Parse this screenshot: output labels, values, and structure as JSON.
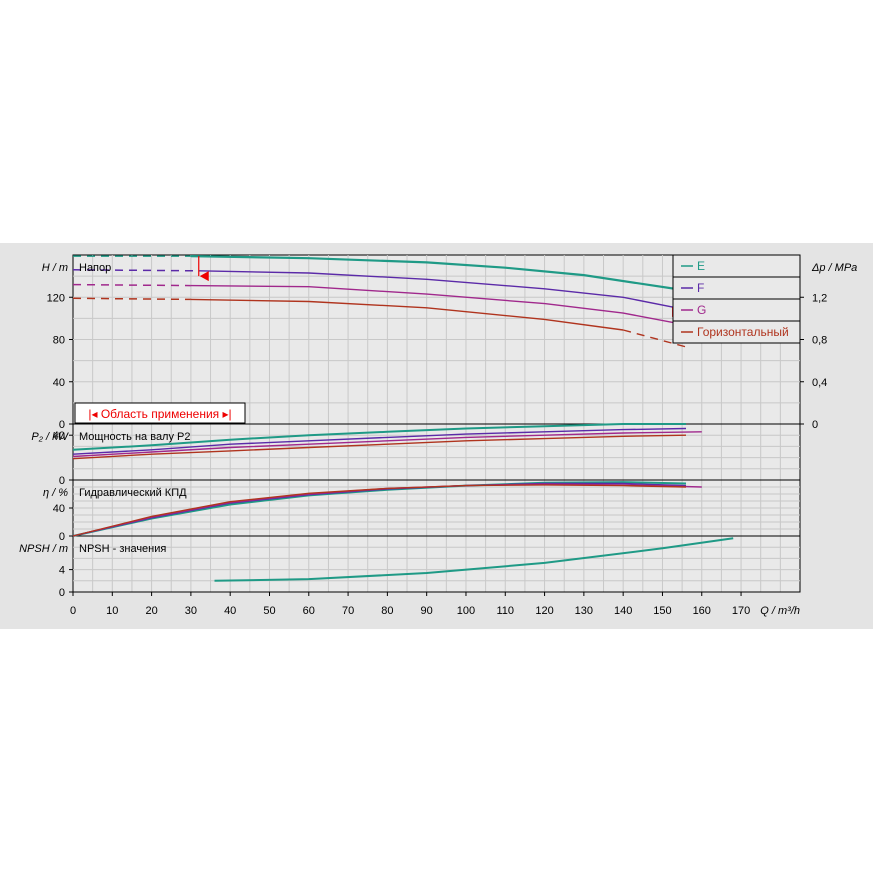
{
  "chart_data": [
    {
      "type": "line",
      "panel": "head",
      "title": "Напор",
      "ylabel": "H / m",
      "y2label": "Δp / MPa",
      "xlabel": "Q / m³/h",
      "xlim": [
        0,
        185
      ],
      "ylim": [
        0,
        160
      ],
      "y2lim": [
        0,
        1.6
      ],
      "xticks": [
        0,
        10,
        20,
        30,
        40,
        50,
        60,
        70,
        80,
        90,
        100,
        110,
        120,
        130,
        140,
        150,
        160,
        170
      ],
      "yticks": [
        0,
        40,
        80,
        120
      ],
      "y2ticks": [
        0,
        0.4,
        0.8,
        1.2
      ],
      "y2ticklabels": [
        "0",
        "0,4",
        "0,8",
        "1,2"
      ],
      "series": [
        {
          "name": "E",
          "color": "#1f9a86",
          "solid": [
            [
              30,
              159
            ],
            [
              60,
              157
            ],
            [
              90,
              153
            ],
            [
              110,
              148
            ],
            [
              130,
              141
            ],
            [
              155,
              127
            ]
          ],
          "dashed": [
            [
              0,
              159
            ],
            [
              30,
              159
            ]
          ]
        },
        {
          "name": "F",
          "color": "#5b2aa8",
          "solid": [
            [
              32,
              145
            ],
            [
              60,
              143
            ],
            [
              90,
              137
            ],
            [
              120,
              128
            ],
            [
              140,
              120
            ],
            [
              155,
              109
            ]
          ],
          "dashed": [
            [
              0,
              146
            ],
            [
              32,
              145
            ]
          ],
          "tail": [
            [
              155,
              109
            ],
            [
              163,
              103
            ]
          ]
        },
        {
          "name": "G",
          "color": "#a0288c",
          "solid": [
            [
              30,
              131
            ],
            [
              60,
              130
            ],
            [
              90,
              123
            ],
            [
              120,
              114
            ],
            [
              140,
              105
            ],
            [
              160,
              91
            ]
          ],
          "dashed": [
            [
              0,
              132
            ],
            [
              30,
              131
            ]
          ],
          "tail": [
            [
              160,
              91
            ],
            [
              168,
              84
            ]
          ]
        },
        {
          "name": "Горизонтальный",
          "color": "#b0341e",
          "solid": [
            [
              30,
              118
            ],
            [
              60,
              116
            ],
            [
              90,
              110
            ],
            [
              120,
              99
            ],
            [
              140,
              89
            ]
          ],
          "dashed": [
            [
              0,
              119
            ],
            [
              30,
              118
            ]
          ],
          "tail": [
            [
              140,
              89
            ],
            [
              156,
              73
            ]
          ]
        }
      ],
      "annotations": {
        "range_label": "Область применения",
        "range_marker_left_x": 32,
        "range_marker_right_x": 155
      }
    },
    {
      "type": "line",
      "panel": "power",
      "title": "Мощность на валу P2",
      "ylabel": "P₂ / kW",
      "ylim": [
        0,
        50
      ],
      "yticks": [
        0,
        40
      ],
      "series": [
        {
          "name": "E",
          "color": "#1f9a86",
          "points": [
            [
              0,
              27
            ],
            [
              20,
              31
            ],
            [
              40,
              36
            ],
            [
              60,
              40
            ],
            [
              80,
              43
            ],
            [
              100,
              46
            ],
            [
              120,
              48
            ],
            [
              140,
              50
            ],
            [
              156,
              50
            ]
          ]
        },
        {
          "name": "F",
          "color": "#5b2aa8",
          "points": [
            [
              0,
              23
            ],
            [
              20,
              27
            ],
            [
              40,
              32
            ],
            [
              60,
              35
            ],
            [
              80,
              38
            ],
            [
              100,
              41
            ],
            [
              120,
              43
            ],
            [
              140,
              45
            ],
            [
              156,
              46
            ]
          ]
        },
        {
          "name": "G",
          "color": "#a0288c",
          "points": [
            [
              0,
              21
            ],
            [
              20,
              25
            ],
            [
              40,
              29
            ],
            [
              60,
              32
            ],
            [
              80,
              35
            ],
            [
              100,
              38
            ],
            [
              120,
              40
            ],
            [
              140,
              42
            ],
            [
              160,
              43
            ]
          ]
        },
        {
          "name": "Горизонтальный",
          "color": "#b0341e",
          "points": [
            [
              0,
              19
            ],
            [
              20,
              23
            ],
            [
              40,
              26
            ],
            [
              60,
              29
            ],
            [
              80,
              32
            ],
            [
              100,
              35
            ],
            [
              120,
              37
            ],
            [
              140,
              39
            ],
            [
              156,
              40
            ]
          ]
        }
      ]
    },
    {
      "type": "line",
      "panel": "efficiency",
      "title": "Гидравлический КПД",
      "ylabel": "η / %",
      "ylim": [
        0,
        80
      ],
      "yticks": [
        0,
        40
      ],
      "series": [
        {
          "name": "E",
          "color": "#1f9a86",
          "points": [
            [
              0,
              0
            ],
            [
              20,
              25
            ],
            [
              40,
              45
            ],
            [
              60,
              58
            ],
            [
              80,
              66
            ],
            [
              100,
              72
            ],
            [
              120,
              76
            ],
            [
              140,
              77
            ],
            [
              156,
              75
            ]
          ]
        },
        {
          "name": "F",
          "color": "#5b2aa8",
          "points": [
            [
              0,
              0
            ],
            [
              20,
              26
            ],
            [
              40,
              47
            ],
            [
              60,
              59
            ],
            [
              80,
              67
            ],
            [
              100,
              72
            ],
            [
              120,
              75
            ],
            [
              140,
              75
            ],
            [
              156,
              72
            ]
          ]
        },
        {
          "name": "G",
          "color": "#a0288c",
          "points": [
            [
              0,
              0
            ],
            [
              20,
              27
            ],
            [
              40,
              48
            ],
            [
              60,
              60
            ],
            [
              80,
              68
            ],
            [
              100,
              72
            ],
            [
              120,
              74
            ],
            [
              140,
              73
            ],
            [
              160,
              70
            ]
          ]
        },
        {
          "name": "Горизонтальный",
          "color": "#b0341e",
          "points": [
            [
              0,
              0
            ],
            [
              20,
              28
            ],
            [
              40,
              49
            ],
            [
              60,
              61
            ],
            [
              80,
              68
            ],
            [
              100,
              72
            ],
            [
              120,
              73
            ],
            [
              140,
              72
            ],
            [
              156,
              70
            ]
          ]
        }
      ]
    },
    {
      "type": "line",
      "panel": "npsh",
      "title": "NPSH - значения",
      "ylabel": "NPSH / m",
      "ylim": [
        0,
        10
      ],
      "yticks": [
        0,
        4
      ],
      "series": [
        {
          "name": "E",
          "color": "#1f9a86",
          "points": [
            [
              36,
              2
            ],
            [
              60,
              2.3
            ],
            [
              90,
              3.4
            ],
            [
              120,
              5.2
            ],
            [
              150,
              7.8
            ],
            [
              168,
              9.6
            ]
          ]
        }
      ]
    }
  ],
  "legend": {
    "items": [
      "E",
      "F",
      "G",
      "Горизонтальный"
    ]
  }
}
